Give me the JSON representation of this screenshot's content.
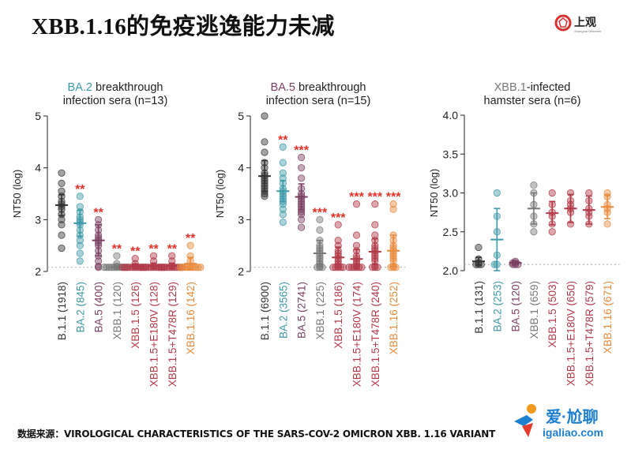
{
  "header": {
    "title": "XBB.1.16的免疫逃逸能力未减"
  },
  "logo": {
    "name": "上观",
    "sub": "Shanghai Observer"
  },
  "source": {
    "text": "数据来源：VIROLOGICAL CHARACTERISTICS OF THE SARS-COV-2 OMICRON XBB. 1.16 VARIANT"
  },
  "watermark": {
    "brand": "爱·尬聊",
    "url": "igaliao.com"
  },
  "colors": {
    "black": "#333333",
    "teal": "#3d9aa8",
    "purple": "#7a3f62",
    "gray": "#777777",
    "red": "#b23a48",
    "orange": "#e98a3b",
    "star": "#e23228"
  },
  "chart_data": [
    {
      "type": "scatter",
      "title_colored": "BA.2",
      "title_rest": " breakthrough",
      "title_line2": "infection sera (n=13)",
      "title_color": "#3d9aa8",
      "ylabel": "NT50 (log)",
      "ylim": [
        2,
        5
      ],
      "yticks": [
        "2",
        "3",
        "4",
        "5"
      ],
      "categories": [
        "B.1.1 (1918)",
        "BA.2 (845)",
        "BA.5 (400)",
        "XBB.1 (120)",
        "XBB.1.5 (126)",
        "XBB.1.5+E180V (128)",
        "XBB.1.5+T478R (129)",
        "XBB.1.16 (142)"
      ],
      "colors": [
        "#333333",
        "#3d9aa8",
        "#7a3f62",
        "#777777",
        "#b23a48",
        "#b23a48",
        "#b23a48",
        "#e98a3b"
      ],
      "means": [
        3.28,
        2.93,
        2.6,
        2.08,
        2.1,
        2.11,
        2.11,
        2.15
      ],
      "errors": [
        0.2,
        0.25,
        0.3,
        0.02,
        0.04,
        0.05,
        0.05,
        0.12
      ],
      "significance": [
        "",
        "**",
        "**",
        "**",
        "**",
        "**",
        "**",
        "**"
      ],
      "detection_limit": 2.08,
      "points": [
        [
          3.9,
          3.7,
          3.55,
          3.45,
          3.35,
          3.3,
          3.25,
          3.2,
          3.1,
          3.0,
          2.9,
          2.7,
          2.45
        ],
        [
          3.45,
          3.25,
          3.15,
          3.05,
          3.0,
          2.95,
          2.9,
          2.8,
          2.7,
          2.6,
          2.5,
          2.35,
          2.2
        ],
        [
          3.0,
          2.9,
          2.8,
          2.7,
          2.65,
          2.6,
          2.55,
          2.5,
          2.4,
          2.3,
          2.2,
          2.1,
          2.08
        ],
        [
          2.3,
          2.15,
          2.1,
          2.08,
          2.08,
          2.08,
          2.08,
          2.08,
          2.08,
          2.08,
          2.08,
          2.08,
          2.08
        ],
        [
          2.25,
          2.15,
          2.1,
          2.08,
          2.08,
          2.08,
          2.08,
          2.08,
          2.08,
          2.08,
          2.08,
          2.08,
          2.08
        ],
        [
          2.3,
          2.2,
          2.1,
          2.08,
          2.08,
          2.08,
          2.08,
          2.08,
          2.08,
          2.08,
          2.08,
          2.08,
          2.08
        ],
        [
          2.3,
          2.2,
          2.1,
          2.08,
          2.08,
          2.08,
          2.08,
          2.08,
          2.08,
          2.08,
          2.08,
          2.08,
          2.08
        ],
        [
          2.5,
          2.3,
          2.2,
          2.1,
          2.08,
          2.08,
          2.08,
          2.08,
          2.08,
          2.08,
          2.08,
          2.08,
          2.08
        ]
      ]
    },
    {
      "type": "scatter",
      "title_colored": "BA.5",
      "title_rest": " breakthrough",
      "title_line2": "infection sera (n=15)",
      "title_color": "#7a3f62",
      "ylabel": "NT50 (log)",
      "ylim": [
        2,
        5
      ],
      "yticks": [
        "2",
        "3",
        "4",
        "5"
      ],
      "categories": [
        "B.1.1 (6900)",
        "BA.2 (3565)",
        "BA.5 (2741)",
        "XBB.1 (225)",
        "XBB.1.5 (186)",
        "XBB.1.5+E180V (174)",
        "XBB.1.5+T478R (240)",
        "XBB.1.16 (252)"
      ],
      "colors": [
        "#333333",
        "#3d9aa8",
        "#7a3f62",
        "#777777",
        "#b23a48",
        "#b23a48",
        "#b23a48",
        "#e98a3b"
      ],
      "means": [
        3.84,
        3.55,
        3.44,
        2.35,
        2.27,
        2.24,
        2.38,
        2.4
      ],
      "errors": [
        0.3,
        0.2,
        0.25,
        0.25,
        0.2,
        0.18,
        0.25,
        0.3
      ],
      "significance": [
        "",
        "**",
        "***",
        "***",
        "***",
        "***",
        "***",
        "***"
      ],
      "detection_limit": 2.08,
      "points": [
        [
          5.0,
          4.5,
          4.3,
          4.1,
          4.0,
          3.9,
          3.85,
          3.8,
          3.75,
          3.7,
          3.65,
          3.6,
          3.55,
          3.5,
          3.45
        ],
        [
          4.4,
          4.1,
          3.9,
          3.8,
          3.7,
          3.6,
          3.55,
          3.5,
          3.45,
          3.4,
          3.35,
          3.3,
          3.2,
          3.1,
          2.95
        ],
        [
          4.2,
          4.0,
          3.8,
          3.6,
          3.5,
          3.45,
          3.4,
          3.35,
          3.3,
          3.25,
          3.2,
          3.15,
          3.1,
          3.0,
          2.85
        ],
        [
          3.0,
          2.8,
          2.6,
          2.5,
          2.45,
          2.4,
          2.35,
          2.3,
          2.25,
          2.2,
          2.15,
          2.1,
          2.08,
          2.08,
          2.08
        ],
        [
          2.9,
          2.6,
          2.5,
          2.4,
          2.35,
          2.3,
          2.25,
          2.2,
          2.15,
          2.1,
          2.08,
          2.08,
          2.08,
          2.08,
          2.08
        ],
        [
          3.3,
          2.7,
          2.5,
          2.4,
          2.3,
          2.25,
          2.2,
          2.15,
          2.1,
          2.08,
          2.08,
          2.08,
          2.08,
          2.08,
          2.08
        ],
        [
          3.3,
          2.9,
          2.7,
          2.6,
          2.5,
          2.45,
          2.4,
          2.35,
          2.3,
          2.25,
          2.2,
          2.1,
          2.08,
          2.08,
          2.08
        ],
        [
          3.3,
          3.2,
          2.7,
          2.6,
          2.5,
          2.45,
          2.4,
          2.35,
          2.3,
          2.25,
          2.2,
          2.1,
          2.08,
          2.08,
          2.08
        ]
      ]
    },
    {
      "type": "scatter",
      "title_colored": "XBB.1",
      "title_rest": "-infected",
      "title_line2": "hamster sera (n=6)",
      "title_color": "#777777",
      "ylabel": "NT50 (log)",
      "ylim": [
        2.0,
        4.0
      ],
      "yticks": [
        "2.0",
        "2.5",
        "3.0",
        "3.5",
        "4.0"
      ],
      "categories": [
        "B.1.1 (131)",
        "BA.2 (253)",
        "BA.5 (120)",
        "XBB.1 (659)",
        "XBB.1.5 (503)",
        "XBB.1.5+E180V (650)",
        "XBB.1.5+T478R (579)",
        "XBB.1.16 (671)"
      ],
      "colors": [
        "#333333",
        "#3d9aa8",
        "#7a3f62",
        "#777777",
        "#b23a48",
        "#b23a48",
        "#b23a48",
        "#e98a3b"
      ],
      "means": [
        2.12,
        2.4,
        2.1,
        2.8,
        2.74,
        2.8,
        2.78,
        2.82
      ],
      "errors": [
        0.05,
        0.4,
        0.02,
        0.2,
        0.15,
        0.18,
        0.18,
        0.15
      ],
      "significance": [
        "",
        "",
        "",
        "",
        "",
        "",
        "",
        ""
      ],
      "detection_limit": 2.08,
      "points": [
        [
          2.3,
          2.15,
          2.1,
          2.08,
          2.08,
          2.08
        ],
        [
          3.0,
          2.7,
          2.5,
          2.2,
          2.08,
          2.08
        ],
        [
          2.12,
          2.1,
          2.1,
          2.08,
          2.08,
          2.08
        ],
        [
          3.1,
          3.0,
          2.85,
          2.7,
          2.6,
          2.5
        ],
        [
          3.0,
          2.85,
          2.75,
          2.7,
          2.6,
          2.5
        ],
        [
          3.0,
          2.9,
          2.85,
          2.8,
          2.75,
          2.6
        ],
        [
          3.0,
          2.9,
          2.8,
          2.75,
          2.7,
          2.6
        ],
        [
          3.0,
          2.95,
          2.85,
          2.8,
          2.75,
          2.6
        ]
      ]
    }
  ]
}
